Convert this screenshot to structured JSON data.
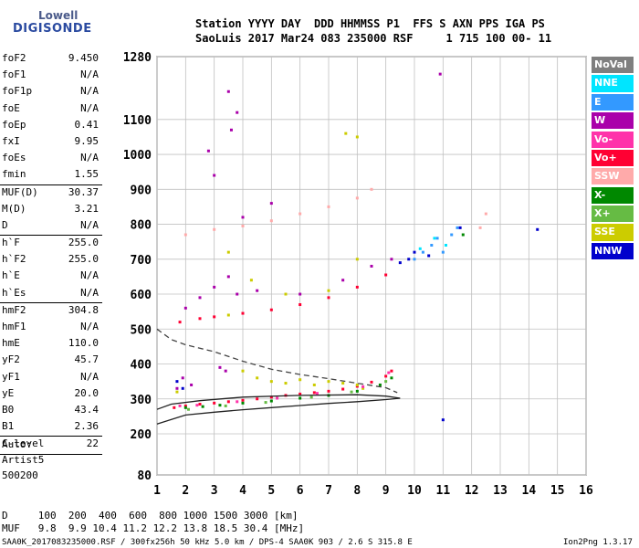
{
  "logo": {
    "line1": "Lowell",
    "line2": "DIGISONDE"
  },
  "header": {
    "line1": "Station YYYY DAY  DDD HHMMSS P1  FFS S AXN PPS IGA PS",
    "line2": "SaoLuis 2017 Mar24 083 235000 RSF     1 715 100 00- 11"
  },
  "params": [
    {
      "name": "foF2",
      "value": "9.450"
    },
    {
      "name": "foF1",
      "value": "N/A"
    },
    {
      "name": "foF1p",
      "value": "N/A"
    },
    {
      "name": "foE",
      "value": "N/A"
    },
    {
      "name": "foEp",
      "value": "0.41"
    },
    {
      "name": "fxI",
      "value": "9.95"
    },
    {
      "name": "foEs",
      "value": "N/A"
    },
    {
      "name": "fmin",
      "value": "1.55",
      "sep": true
    },
    {
      "name": "MUF(D)",
      "value": "30.37"
    },
    {
      "name": "M(D)",
      "value": "3.21"
    },
    {
      "name": "D",
      "value": "N/A",
      "sep": true
    },
    {
      "name": "h`F",
      "value": "255.0"
    },
    {
      "name": "h`F2",
      "value": "255.0"
    },
    {
      "name": "h`E",
      "value": "N/A"
    },
    {
      "name": "h`Es",
      "value": "N/A",
      "sep": true
    },
    {
      "name": "hmF2",
      "value": "304.8"
    },
    {
      "name": "hmF1",
      "value": "N/A"
    },
    {
      "name": "hmE",
      "value": "110.0"
    },
    {
      "name": "yF2",
      "value": "45.7"
    },
    {
      "name": "yF1",
      "value": "N/A"
    },
    {
      "name": "yE",
      "value": "20.0"
    },
    {
      "name": "B0",
      "value": "43.4"
    },
    {
      "name": "B1",
      "value": "2.36",
      "sep": true
    },
    {
      "name": "C-level",
      "value": "22",
      "sep": true
    }
  ],
  "autoscale": {
    "line1": "Auto:",
    "line2": "Artist5",
    "line3": "500200"
  },
  "legend": [
    {
      "label": "NoVal",
      "color": "#7f7f7f"
    },
    {
      "label": "NNE",
      "color": "#00e5ff"
    },
    {
      "label": "E",
      "color": "#3399ff"
    },
    {
      "label": "W",
      "color": "#aa00aa"
    },
    {
      "label": "Vo-",
      "color": "#ff33aa"
    },
    {
      "label": "Vo+",
      "color": "#ff0033"
    },
    {
      "label": "SSW",
      "color": "#ffaaaa"
    },
    {
      "label": "X-",
      "color": "#008800"
    },
    {
      "label": "X+",
      "color": "#66bb44"
    },
    {
      "label": "SSE",
      "color": "#cccc00"
    },
    {
      "label": "NNW",
      "color": "#0000cc"
    }
  ],
  "footer": {
    "d_row": "D     100  200  400  600  800 1000 1500 3000 [km]",
    "muf_row": "MUF   9.8  9.9 10.4 11.2 12.2 13.8 18.5 30.4 [MHz]",
    "info": "SAA0K_2017083235000.RSF / 300fx256h 50 kHz 5.0 km / DPS-4 SAA0K 903 / 2.6 S 315.8 E",
    "version": "Ion2Png 1.3.17"
  },
  "chart_data": {
    "type": "scatter",
    "xlabel": "",
    "ylabel": "",
    "xlim": [
      1,
      16
    ],
    "xticks": [
      1,
      2,
      3,
      4,
      5,
      6,
      7,
      8,
      9,
      10,
      11,
      12,
      13,
      14,
      15,
      16
    ],
    "yticks": [
      80,
      200,
      300,
      400,
      500,
      600,
      700,
      800,
      900,
      1000,
      1100,
      1280
    ],
    "grid": true,
    "series": [
      {
        "label": "Vo+",
        "color": "#ff0033",
        "points": [
          [
            1.6,
            275
          ],
          [
            2.0,
            280
          ],
          [
            2.5,
            285
          ],
          [
            3.0,
            288
          ],
          [
            3.5,
            292
          ],
          [
            4.0,
            296
          ],
          [
            4.5,
            300
          ],
          [
            5.0,
            305
          ],
          [
            5.5,
            310
          ],
          [
            6.0,
            314
          ],
          [
            6.5,
            318
          ],
          [
            7.0,
            322
          ],
          [
            7.5,
            328
          ],
          [
            8.0,
            336
          ],
          [
            8.5,
            348
          ],
          [
            9.0,
            365
          ],
          [
            9.2,
            380
          ],
          [
            1.8,
            520
          ],
          [
            2.5,
            530
          ],
          [
            3.0,
            535
          ],
          [
            4.0,
            545
          ],
          [
            5.0,
            555
          ],
          [
            6.0,
            570
          ],
          [
            7.0,
            590
          ],
          [
            8.0,
            620
          ],
          [
            9.0,
            655
          ]
        ]
      },
      {
        "label": "W",
        "color": "#aa00aa",
        "points": [
          [
            1.7,
            330
          ],
          [
            1.9,
            360
          ],
          [
            2.2,
            340
          ],
          [
            3.2,
            390
          ],
          [
            3.4,
            380
          ],
          [
            2.0,
            560
          ],
          [
            2.5,
            590
          ],
          [
            3.0,
            620
          ],
          [
            3.5,
            650
          ],
          [
            3.8,
            600
          ],
          [
            4.5,
            610
          ],
          [
            6.0,
            600
          ],
          [
            7.5,
            640
          ],
          [
            8.5,
            680
          ],
          [
            9.2,
            700
          ],
          [
            3.5,
            1180
          ],
          [
            3.8,
            1120
          ],
          [
            3.6,
            1070
          ],
          [
            2.8,
            1010
          ],
          [
            3.0,
            940
          ],
          [
            4.0,
            820
          ],
          [
            5.0,
            860
          ],
          [
            10.9,
            1230
          ]
        ]
      },
      {
        "label": "X-",
        "color": "#008800",
        "points": [
          [
            2.0,
            275
          ],
          [
            2.6,
            278
          ],
          [
            3.2,
            282
          ],
          [
            4.0,
            288
          ],
          [
            5.0,
            294
          ],
          [
            6.0,
            302
          ],
          [
            7.0,
            310
          ],
          [
            8.0,
            322
          ],
          [
            8.8,
            340
          ],
          [
            9.2,
            360
          ],
          [
            11.7,
            770
          ]
        ]
      },
      {
        "label": "SSE",
        "color": "#cccc00",
        "points": [
          [
            4.0,
            380
          ],
          [
            4.5,
            360
          ],
          [
            5.0,
            350
          ],
          [
            5.5,
            345
          ],
          [
            6.0,
            355
          ],
          [
            6.5,
            340
          ],
          [
            7.0,
            350
          ],
          [
            7.5,
            345
          ],
          [
            8.0,
            340
          ],
          [
            8.2,
            330
          ],
          [
            1.7,
            320
          ],
          [
            3.5,
            720
          ],
          [
            4.3,
            640
          ],
          [
            5.5,
            600
          ],
          [
            7.0,
            610
          ],
          [
            8.0,
            700
          ],
          [
            7.6,
            1060
          ],
          [
            8.0,
            1050
          ],
          [
            3.5,
            540
          ]
        ]
      },
      {
        "label": "E",
        "color": "#3399ff",
        "points": [
          [
            10.0,
            700
          ],
          [
            10.3,
            720
          ],
          [
            10.6,
            740
          ],
          [
            10.8,
            760
          ],
          [
            11.0,
            720
          ],
          [
            11.3,
            770
          ],
          [
            11.5,
            790
          ]
        ]
      },
      {
        "label": "NNW",
        "color": "#0000cc",
        "points": [
          [
            9.5,
            690
          ],
          [
            9.8,
            700
          ],
          [
            10.0,
            720
          ],
          [
            10.5,
            710
          ],
          [
            11.0,
            240
          ],
          [
            11.6,
            790
          ],
          [
            14.3,
            785
          ],
          [
            1.7,
            350
          ],
          [
            1.9,
            330
          ]
        ]
      },
      {
        "label": "NNE",
        "color": "#00e5ff",
        "points": [
          [
            10.2,
            730
          ],
          [
            10.7,
            760
          ],
          [
            11.1,
            740
          ]
        ]
      },
      {
        "label": "SSW",
        "color": "#ffaaaa",
        "points": [
          [
            2.0,
            770
          ],
          [
            3.0,
            785
          ],
          [
            4.0,
            795
          ],
          [
            5.0,
            810
          ],
          [
            6.0,
            830
          ],
          [
            7.0,
            850
          ],
          [
            8.0,
            875
          ],
          [
            8.5,
            900
          ],
          [
            12.3,
            790
          ],
          [
            12.5,
            830
          ]
        ]
      },
      {
        "label": "X+",
        "color": "#66bb44",
        "points": [
          [
            2.1,
            270
          ],
          [
            3.4,
            280
          ],
          [
            4.8,
            290
          ],
          [
            6.4,
            305
          ],
          [
            7.8,
            320
          ],
          [
            9.0,
            350
          ]
        ]
      },
      {
        "label": "Vo-",
        "color": "#ff33aa",
        "points": [
          [
            1.8,
            280
          ],
          [
            2.4,
            282
          ],
          [
            3.8,
            292
          ],
          [
            5.2,
            302
          ],
          [
            6.6,
            316
          ],
          [
            8.2,
            335
          ],
          [
            9.1,
            375
          ]
        ]
      }
    ],
    "curves": [
      {
        "style": "solid",
        "points": [
          [
            1.0,
            228
          ],
          [
            2.0,
            254
          ],
          [
            3.0,
            262
          ],
          [
            4.0,
            269
          ],
          [
            5.0,
            275
          ],
          [
            6.0,
            281
          ],
          [
            7.0,
            287
          ],
          [
            8.0,
            292
          ],
          [
            9.0,
            298
          ],
          [
            9.5,
            302
          ],
          [
            9.0,
            308
          ],
          [
            8.0,
            312
          ],
          [
            6.0,
            310
          ],
          [
            4.0,
            305
          ],
          [
            2.5,
            295
          ],
          [
            1.5,
            285
          ],
          [
            1.0,
            270
          ]
        ]
      },
      {
        "style": "dashed",
        "points": [
          [
            1.0,
            500
          ],
          [
            1.5,
            470
          ],
          [
            2.0,
            455
          ],
          [
            3.0,
            435
          ],
          [
            4.0,
            408
          ],
          [
            5.0,
            385
          ],
          [
            6.0,
            370
          ],
          [
            7.0,
            358
          ],
          [
            8.0,
            345
          ],
          [
            9.0,
            332
          ],
          [
            9.4,
            318
          ]
        ]
      }
    ]
  }
}
